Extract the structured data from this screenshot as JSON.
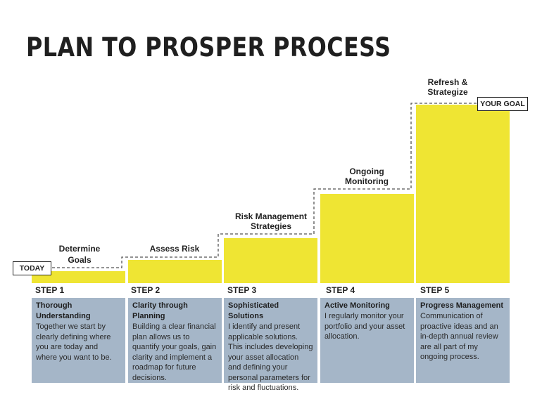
{
  "title": "PLAN TO PROSPER PROCESS",
  "markers": {
    "start": "TODAY",
    "end": "YOUR GOAL"
  },
  "stages": [
    {
      "step": "STEP 1",
      "label": "Determine Goals",
      "card_title": "Thorough Understanding",
      "card_body": "Together we start by clearly defining where you are today and where you want to be."
    },
    {
      "step": "STEP 2",
      "label": "Assess Risk",
      "card_title": "Clarity through Planning",
      "card_body": "Building a clear financial plan allows us to quantify your goals, gain clarity and implement a roadmap for future decisions."
    },
    {
      "step": "STEP 3",
      "label": "Risk Management Strategies",
      "card_title": "Sophisticated Solutions",
      "card_body": "I identify and present applicable solutions. This includes developing your asset allocation and defining your personal parameters for risk and fluctuations."
    },
    {
      "step": "STEP 4",
      "label": "Ongoing Monitoring",
      "card_title": "Active Monitoring",
      "card_body": "I regularly monitor your portfolio and your asset allocation."
    },
    {
      "step": "STEP 5",
      "label": "Refresh & Strategize",
      "card_title": "Progress Management",
      "card_body": "Communication of proactive ideas and an in-depth annual review are all part of my ongoing process."
    }
  ],
  "colors": {
    "bar": "#efe533",
    "card": "#a5b6c8",
    "text": "#222222"
  }
}
